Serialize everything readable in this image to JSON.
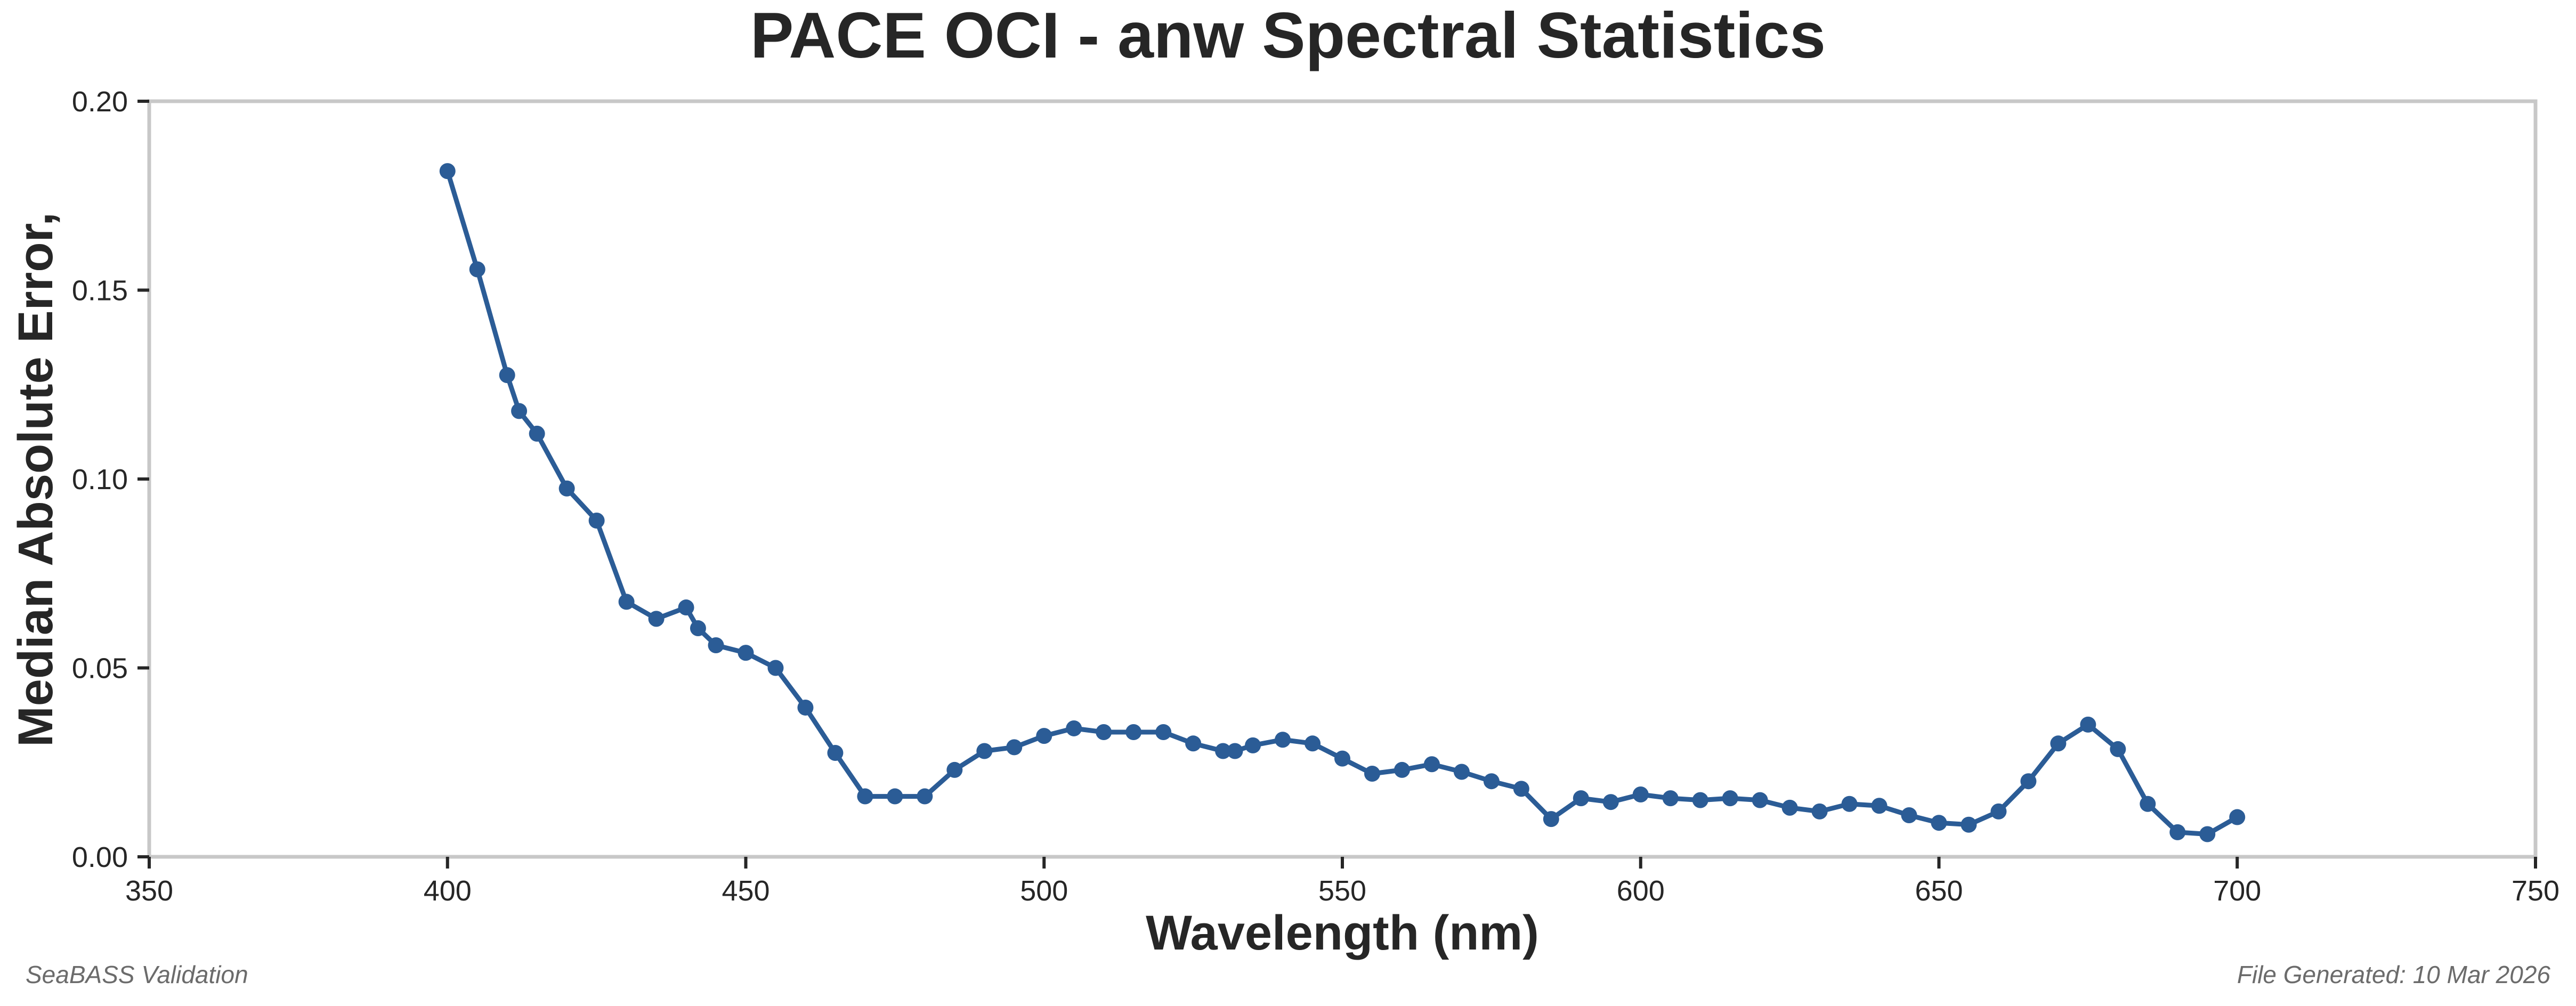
{
  "chart_data": {
    "type": "line",
    "title": "PACE OCI - anw Spectral Statistics",
    "xlabel": "Wavelength (nm)",
    "ylabel": "Median Absolute Error,",
    "xlim": [
      350,
      750
    ],
    "ylim": [
      0,
      0.2
    ],
    "xticks": [
      350,
      400,
      450,
      500,
      550,
      600,
      650,
      700,
      750
    ],
    "xtick_labels": [
      "350",
      "400",
      "450",
      "500",
      "550",
      "600",
      "650",
      "700",
      "750"
    ],
    "yticks": [
      0,
      0.05,
      0.1,
      0.15,
      0.2
    ],
    "ytick_labels": [
      "0.00",
      "0.05",
      "0.10",
      "0.15",
      "0.20"
    ],
    "grid": false,
    "series": [
      {
        "name": "anw",
        "color": "#2b5c96",
        "x": [
          400,
          405,
          410,
          412,
          415,
          420,
          425,
          430,
          435,
          440,
          442,
          445,
          450,
          455,
          460,
          465,
          470,
          475,
          480,
          485,
          490,
          495,
          500,
          505,
          510,
          515,
          520,
          525,
          530,
          532,
          535,
          540,
          545,
          550,
          555,
          560,
          565,
          570,
          575,
          580,
          585,
          590,
          595,
          600,
          605,
          610,
          615,
          620,
          625,
          630,
          635,
          640,
          645,
          650,
          655,
          660,
          665,
          670,
          675,
          680,
          685,
          690,
          695,
          700
        ],
        "y": [
          0.1815,
          0.1555,
          0.1275,
          0.118,
          0.112,
          0.0975,
          0.089,
          0.0675,
          0.063,
          0.066,
          0.0605,
          0.056,
          0.054,
          0.05,
          0.0395,
          0.0275,
          0.016,
          0.016,
          0.016,
          0.023,
          0.028,
          0.029,
          0.032,
          0.034,
          0.033,
          0.033,
          0.033,
          0.03,
          0.028,
          0.028,
          0.0295,
          0.031,
          0.03,
          0.026,
          0.022,
          0.023,
          0.0245,
          0.0225,
          0.02,
          0.018,
          0.01,
          0.0155,
          0.0145,
          0.0165,
          0.0155,
          0.015,
          0.0155,
          0.015,
          0.013,
          0.012,
          0.014,
          0.0135,
          0.011,
          0.009,
          0.0085,
          0.012,
          0.02,
          0.03,
          0.035,
          0.0285,
          0.014,
          0.0065,
          0.006,
          0.0105
        ]
      }
    ]
  },
  "footer": {
    "left": "SeaBASS Validation",
    "right": "File Generated: 10 Mar 2026"
  }
}
